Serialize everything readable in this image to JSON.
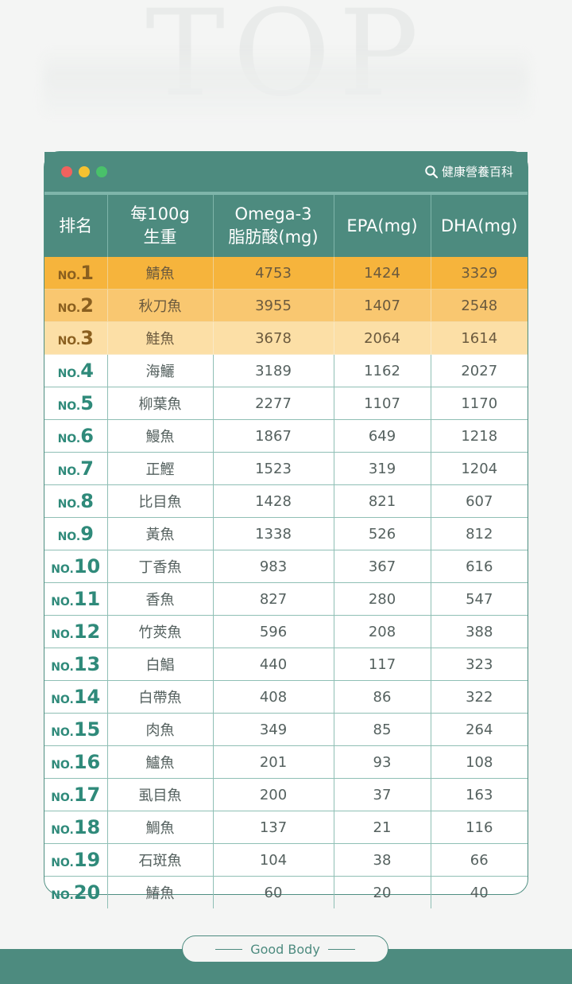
{
  "header": {
    "bg_word": "TOP",
    "brand": "健康營養百科",
    "brand_icon": "search-icon"
  },
  "colors": {
    "primary": "#4d8b7f",
    "rank1": "#f6b43c",
    "rank2": "#f9c770",
    "rank3": "#fcdfa6"
  },
  "table": {
    "columns": [
      {
        "line1": "排名",
        "line2": ""
      },
      {
        "line1": "每100g",
        "line2": "生重"
      },
      {
        "line1": "Omega-3",
        "line2": "脂肪酸(mg)"
      },
      {
        "line1": "EPA(mg)",
        "line2": ""
      },
      {
        "line1": "DHA(mg)",
        "line2": ""
      }
    ],
    "rows": [
      {
        "prefix": "NO.",
        "rank": "1",
        "name": "鯖魚",
        "omega3": "4753",
        "epa": "1424",
        "dha": "3329"
      },
      {
        "prefix": "NO.",
        "rank": "2",
        "name": "秋刀魚",
        "omega3": "3955",
        "epa": "1407",
        "dha": "2548"
      },
      {
        "prefix": "NO.",
        "rank": "3",
        "name": "鮭魚",
        "omega3": "3678",
        "epa": "2064",
        "dha": "1614"
      },
      {
        "prefix": "NO.",
        "rank": "4",
        "name": "海鱺",
        "omega3": "3189",
        "epa": "1162",
        "dha": "2027"
      },
      {
        "prefix": "NO.",
        "rank": "5",
        "name": "柳葉魚",
        "omega3": "2277",
        "epa": "1107",
        "dha": "1170"
      },
      {
        "prefix": "NO.",
        "rank": "6",
        "name": "鰻魚",
        "omega3": "1867",
        "epa": "649",
        "dha": "1218"
      },
      {
        "prefix": "NO.",
        "rank": "7",
        "name": "正鰹",
        "omega3": "1523",
        "epa": "319",
        "dha": "1204"
      },
      {
        "prefix": "NO.",
        "rank": "8",
        "name": "比目魚",
        "omega3": "1428",
        "epa": "821",
        "dha": "607"
      },
      {
        "prefix": "NO.",
        "rank": "9",
        "name": "黃魚",
        "omega3": "1338",
        "epa": "526",
        "dha": "812"
      },
      {
        "prefix": "NO.",
        "rank": "10",
        "name": "丁香魚",
        "omega3": "983",
        "epa": "367",
        "dha": "616"
      },
      {
        "prefix": "NO.",
        "rank": "11",
        "name": "香魚",
        "omega3": "827",
        "epa": "280",
        "dha": "547"
      },
      {
        "prefix": "NO.",
        "rank": "12",
        "name": "竹莢魚",
        "omega3": "596",
        "epa": "208",
        "dha": "388"
      },
      {
        "prefix": "NO.",
        "rank": "13",
        "name": "白鯧",
        "omega3": "440",
        "epa": "117",
        "dha": "323"
      },
      {
        "prefix": "NO.",
        "rank": "14",
        "name": "白帶魚",
        "omega3": "408",
        "epa": "86",
        "dha": "322"
      },
      {
        "prefix": "NO.",
        "rank": "15",
        "name": "肉魚",
        "omega3": "349",
        "epa": "85",
        "dha": "264"
      },
      {
        "prefix": "NO.",
        "rank": "16",
        "name": "鱸魚",
        "omega3": "201",
        "epa": "93",
        "dha": "108"
      },
      {
        "prefix": "NO.",
        "rank": "17",
        "name": "虱目魚",
        "omega3": "200",
        "epa": "37",
        "dha": "163"
      },
      {
        "prefix": "NO.",
        "rank": "18",
        "name": "鯛魚",
        "omega3": "137",
        "epa": "21",
        "dha": "116"
      },
      {
        "prefix": "NO.",
        "rank": "19",
        "name": "石斑魚",
        "omega3": "104",
        "epa": "38",
        "dha": "66"
      },
      {
        "prefix": "NO.",
        "rank": "20",
        "name": "鰆魚",
        "omega3": "60",
        "epa": "20",
        "dha": "40"
      }
    ]
  },
  "footer": {
    "label": "Good Body"
  }
}
